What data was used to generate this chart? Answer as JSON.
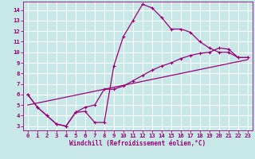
{
  "xlabel": "Windchill (Refroidissement éolien,°C)",
  "bg_color": "#c8e8e8",
  "grid_color": "#ffffff",
  "line_color": "#990077",
  "xlim": [
    -0.5,
    23.5
  ],
  "ylim": [
    2.6,
    14.8
  ],
  "yticks": [
    3,
    4,
    5,
    6,
    7,
    8,
    9,
    10,
    11,
    12,
    13,
    14
  ],
  "xticks": [
    0,
    1,
    2,
    3,
    4,
    5,
    6,
    7,
    8,
    9,
    10,
    11,
    12,
    13,
    14,
    15,
    16,
    17,
    18,
    19,
    20,
    21,
    22,
    23
  ],
  "line1_x": [
    0,
    1,
    2,
    3,
    4,
    5,
    6,
    7,
    8,
    9,
    10,
    11,
    12,
    13,
    14,
    15,
    16,
    17,
    18,
    19,
    20,
    21,
    22,
    23
  ],
  "line1_y": [
    6.0,
    4.8,
    4.0,
    3.2,
    3.0,
    4.3,
    4.4,
    3.35,
    3.35,
    8.7,
    11.5,
    13.0,
    14.55,
    14.2,
    13.3,
    12.2,
    12.2,
    11.9,
    11.0,
    10.4,
    10.0,
    10.0,
    9.5,
    9.5
  ],
  "line2_x": [
    0,
    1,
    2,
    3,
    4,
    5,
    6,
    7,
    8,
    9,
    10,
    11,
    12,
    13,
    14,
    15,
    16,
    17,
    18,
    19,
    20,
    21,
    22,
    23
  ],
  "line2_y": [
    6.0,
    4.8,
    4.0,
    3.2,
    3.0,
    4.3,
    4.8,
    5.0,
    6.5,
    6.5,
    6.8,
    7.3,
    7.8,
    8.3,
    8.7,
    9.0,
    9.4,
    9.7,
    9.9,
    10.0,
    10.4,
    10.3,
    9.5,
    9.5
  ],
  "line3_x": [
    0,
    23
  ],
  "line3_y": [
    5.0,
    9.3
  ]
}
